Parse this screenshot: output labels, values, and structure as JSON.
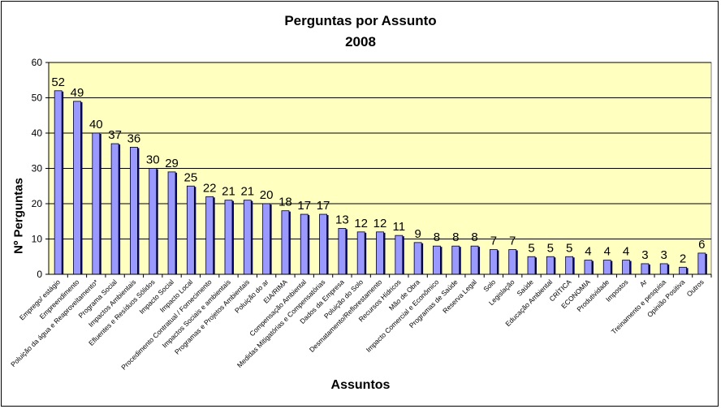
{
  "chart_data": {
    "type": "bar",
    "title": "Perguntas por Assunto",
    "subtitle": "2008",
    "xlabel": "Assuntos",
    "ylabel": "Nº Perguntas",
    "ylim": [
      0,
      60
    ],
    "yticks": [
      0,
      10,
      20,
      30,
      40,
      50,
      60
    ],
    "grid": true,
    "legend": "none",
    "colors": {
      "plot_bg": "#FFFFC0",
      "bar_fill": "#9999FF",
      "bar_shadow": "#000080",
      "grid": "#000000"
    },
    "categories": [
      "Emprego/ estágio",
      "Empreendimento",
      "Poluição da água e Reaproveitamento*",
      "Programa Social",
      "Impactos Ambientais",
      "Efluentes e Resíduos Sólidos",
      "Impacto Social",
      "Impacto Local",
      "Procedimento Contratual / Fornecimento",
      "Impactos Sociais e ambientais",
      "Programas e Projetos Ambientais",
      "Poluição do ar",
      "EIA/RIMA",
      "Compensação Ambiental",
      "Medidas Mitigatórias e Compensatórias",
      "Dados da Empresa",
      "Poluição do Solo",
      "Desmatamento/Reflorestamento",
      "Recursos Hídricos",
      "Mão de Obra",
      "Impacto Comercial e Econômico",
      "Programas de Saúde",
      "Reserva Legal",
      "Solo",
      "Legislação",
      "Saúde",
      "Educação Ambiental",
      "CRÍTICA",
      "ECONOMIA",
      "Produtividade",
      "Impostos",
      "Ar",
      "Treinamento e pesquisa",
      "Opinião Positiva",
      "Outros"
    ],
    "values": [
      52,
      49,
      40,
      37,
      36,
      30,
      29,
      25,
      22,
      21,
      21,
      20,
      18,
      17,
      17,
      13,
      12,
      12,
      11,
      9,
      8,
      8,
      8,
      7,
      7,
      5,
      5,
      5,
      4,
      4,
      4,
      3,
      3,
      2,
      6
    ]
  }
}
